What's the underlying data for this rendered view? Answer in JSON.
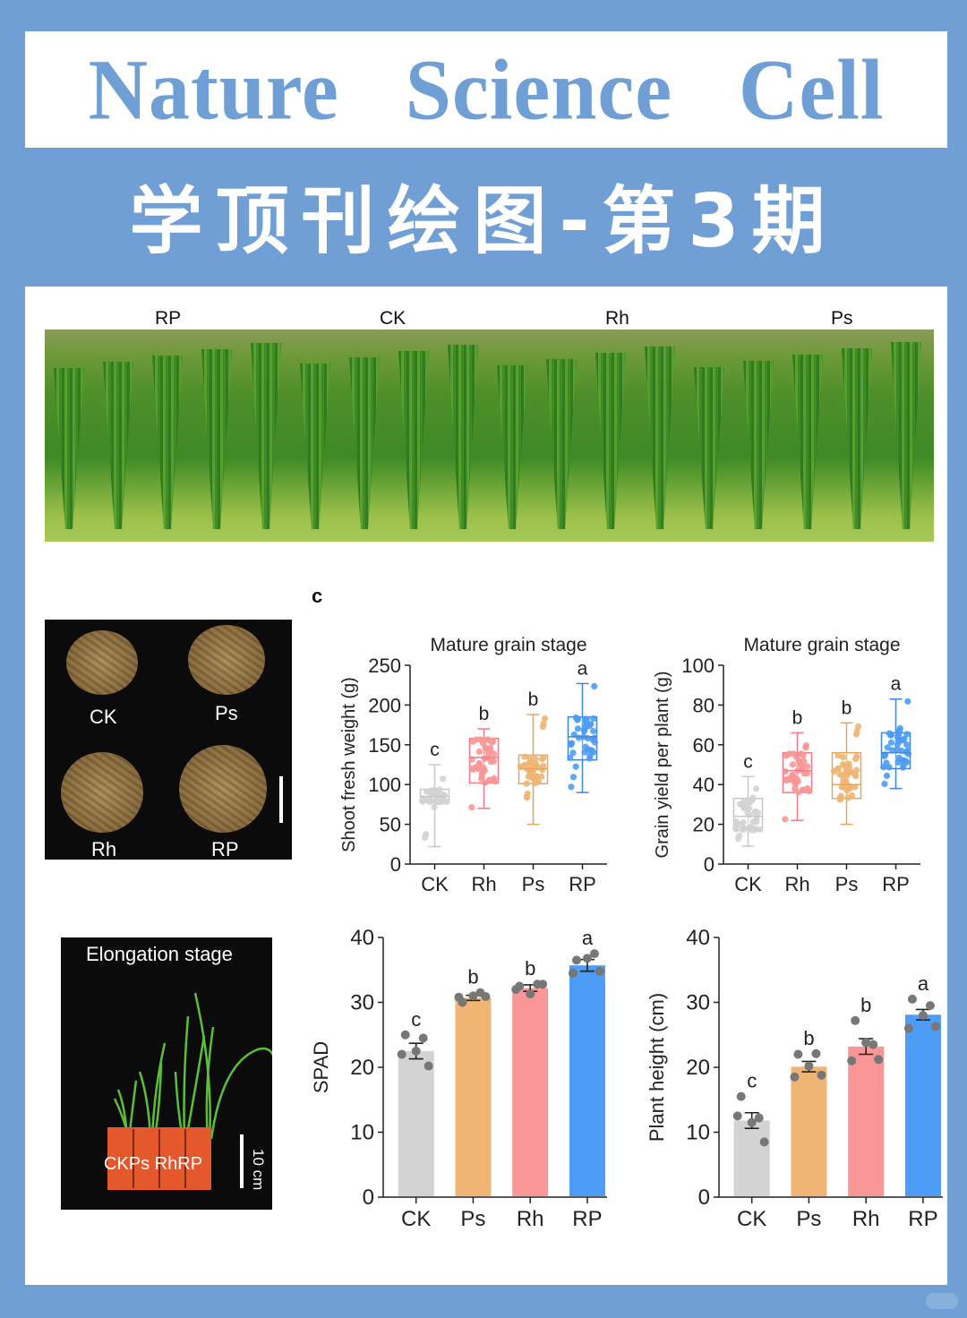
{
  "header": {
    "title_en": "Nature Science Cell",
    "title_cn": "学顶刊绘图-第3期"
  },
  "field_photo": {
    "labels": [
      "RP",
      "CK",
      "Rh",
      "Ps"
    ]
  },
  "panel_c_label": "c",
  "seed_photo": {
    "labels": [
      "CK",
      "Ps",
      "Rh",
      "RP"
    ]
  },
  "elongation_photo": {
    "title": "Elongation stage",
    "pot_labels": "CKPs RhRP",
    "scale_label": "10 cm"
  },
  "colors": {
    "CK": "#d3d3d3",
    "Ps": "#f0b574",
    "Rh": "#f99696",
    "RP": "#4d9cf5",
    "CK_box": "#c8c8c8",
    "Ps_box": "#e3a75c",
    "Rh_box": "#f07a88",
    "RP_box": "#3f86d6",
    "dot": "#777777",
    "header_blue": "#6f9fd4"
  },
  "chart_data": [
    {
      "type": "box",
      "title": "Mature grain stage",
      "xlabel": "",
      "ylabel": "Shoot fresh weight (g)",
      "ylim": [
        0,
        250
      ],
      "yticks": [
        0,
        50,
        100,
        150,
        200,
        250
      ],
      "categories": [
        "CK",
        "Rh",
        "Ps",
        "RP"
      ],
      "boxes": [
        {
          "name": "CK",
          "min": 22,
          "q1": 78,
          "median": 85,
          "q3": 94,
          "max": 125,
          "letter": "c"
        },
        {
          "name": "Rh",
          "min": 70,
          "q1": 102,
          "median": 134,
          "q3": 158,
          "max": 170,
          "letter": "b"
        },
        {
          "name": "Ps",
          "min": 50,
          "q1": 101,
          "median": 120,
          "q3": 137,
          "max": 188,
          "letter": "b"
        },
        {
          "name": "RP",
          "min": 90,
          "q1": 131,
          "median": 160,
          "q3": 185,
          "max": 227,
          "letter": "a"
        }
      ]
    },
    {
      "type": "box",
      "title": "Mature grain stage",
      "xlabel": "",
      "ylabel": "Grain yield per plant (g)",
      "ylim": [
        0,
        100
      ],
      "yticks": [
        0,
        20,
        40,
        60,
        80,
        100
      ],
      "categories": [
        "CK",
        "Rh",
        "Ps",
        "RP"
      ],
      "boxes": [
        {
          "name": "CK",
          "min": 9,
          "q1": 17,
          "median": 24,
          "q3": 33,
          "max": 44,
          "letter": "c"
        },
        {
          "name": "Rh",
          "min": 22,
          "q1": 36,
          "median": 47,
          "q3": 56,
          "max": 66,
          "letter": "b"
        },
        {
          "name": "Ps",
          "min": 20,
          "q1": 33,
          "median": 40,
          "q3": 56,
          "max": 71,
          "letter": "b"
        },
        {
          "name": "RP",
          "min": 38,
          "q1": 48,
          "median": 56,
          "q3": 66,
          "max": 83,
          "letter": "a"
        }
      ]
    },
    {
      "type": "bar",
      "title": "",
      "xlabel": "",
      "ylabel": "SPAD",
      "ylim": [
        0,
        40
      ],
      "yticks": [
        0,
        10,
        20,
        30,
        40
      ],
      "categories": [
        "CK",
        "Ps",
        "Rh",
        "RP"
      ],
      "values": [
        22.5,
        30.7,
        32.2,
        35.7
      ],
      "errors": [
        1.2,
        0.4,
        0.5,
        0.9
      ],
      "letters": [
        "c",
        "b",
        "b",
        "a"
      ],
      "points": [
        [
          25,
          24.5,
          22.5,
          22,
          20.2
        ],
        [
          30,
          31.5,
          31,
          30.8,
          30.9
        ],
        [
          32.5,
          32.8,
          31.3,
          32,
          32.8
        ],
        [
          36.5,
          37.5,
          36.8,
          34.5,
          34.8
        ]
      ]
    },
    {
      "type": "bar",
      "title": "",
      "xlabel": "",
      "ylabel": "Plant height (cm)",
      "ylim": [
        0,
        40
      ],
      "yticks": [
        0,
        10,
        20,
        30,
        40
      ],
      "categories": [
        "CK",
        "Ps",
        "Rh",
        "RP"
      ],
      "values": [
        11.8,
        20.1,
        23.2,
        28.1
      ],
      "errors": [
        1.2,
        0.8,
        1.2,
        0.8
      ],
      "letters": [
        "c",
        "b",
        "b",
        "a"
      ],
      "points": [
        [
          15.5,
          12.2,
          11.5,
          12.5,
          8.5
        ],
        [
          22,
          22.1,
          20.2,
          18.5,
          18.8
        ],
        [
          27.2,
          23.5,
          23.8,
          21,
          21.2
        ],
        [
          30.5,
          29.5,
          28,
          26,
          26.3
        ]
      ]
    }
  ]
}
